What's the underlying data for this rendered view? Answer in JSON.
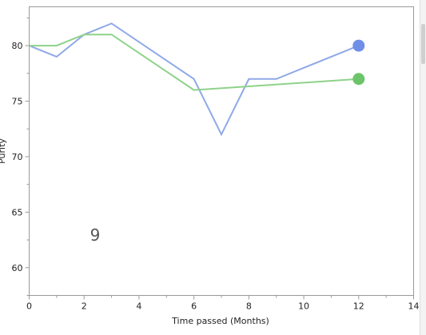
{
  "chart_data": {
    "type": "line",
    "xlabel": "Time passed (Months)",
    "ylabel": "Purity",
    "xlim": [
      0,
      14
    ],
    "ylim": [
      57.5,
      83.5
    ],
    "x_ticks": [
      0,
      2,
      4,
      6,
      8,
      10,
      12,
      14
    ],
    "y_ticks": [
      60,
      65,
      70,
      75,
      80
    ],
    "grid": false,
    "annotation": "9",
    "series": [
      {
        "color": "#8fa8e8",
        "marker_color": "#6f8fe6",
        "x": [
          0,
          1,
          2,
          3,
          6,
          7,
          8,
          9,
          12
        ],
        "y": [
          80,
          79,
          81,
          82,
          77,
          72,
          77,
          77,
          80
        ]
      },
      {
        "color": "#8ed28a",
        "marker_color": "#6cc46a",
        "x": [
          0,
          1,
          2,
          3,
          6,
          12
        ],
        "y": [
          80,
          80,
          81,
          81,
          76,
          77
        ]
      }
    ]
  }
}
